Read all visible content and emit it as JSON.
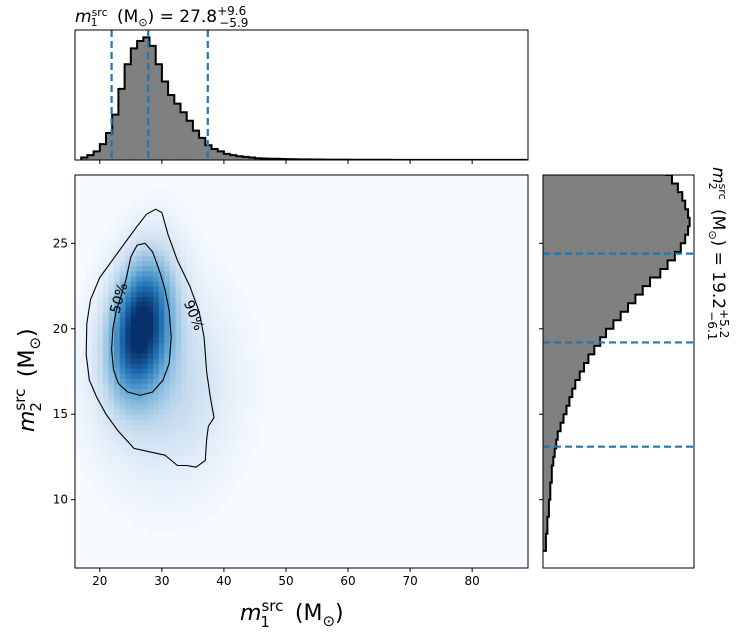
{
  "chart_data": [
    {
      "type": "histogram",
      "panel": "top-marginal",
      "variable": "m1_src",
      "title": {
        "pre": "m",
        "sub": "1",
        "sup": "src",
        "unit": " (M",
        "sun": "⊙",
        "close": ") = ",
        "median": "27.8",
        "plus": "+9.6",
        "minus": "−5.9"
      },
      "xlim": [
        16,
        89
      ],
      "bin_edges_start": 17,
      "bin_width": 1,
      "counts": [
        0.02,
        0.04,
        0.07,
        0.13,
        0.22,
        0.37,
        0.58,
        0.78,
        0.91,
        0.97,
        1.0,
        0.93,
        0.78,
        0.64,
        0.53,
        0.46,
        0.39,
        0.32,
        0.24,
        0.18,
        0.12,
        0.09,
        0.07,
        0.05,
        0.04,
        0.03,
        0.025,
        0.02,
        0.015,
        0.012,
        0.01,
        0.01,
        0.008,
        0.007,
        0.006,
        0.005,
        0.005,
        0.004,
        0.004,
        0.003,
        0.003,
        0.003,
        0.003,
        0.002,
        0.002,
        0.002,
        0.002,
        0.002,
        0.002,
        0.002,
        0.001,
        0.001,
        0.001,
        0.001,
        0.001,
        0.001,
        0.001,
        0.001,
        0.001,
        0.001,
        0.001,
        0.001,
        0.001,
        0.001,
        0.001,
        0.001,
        0.001,
        0.001,
        0.001,
        0.001,
        0.001,
        0.001
      ],
      "quantile_lines": [
        21.9,
        27.8,
        37.4
      ]
    },
    {
      "type": "heatmap",
      "panel": "joint",
      "xlabel": {
        "pre": "m",
        "sub": "1",
        "sup": "src",
        "unit": " (M",
        "sun": "⊙",
        "close": ")"
      },
      "ylabel": {
        "pre": "m",
        "sub": "2",
        "sup": "src",
        "unit": " (M",
        "sun": "⊙",
        "close": ")"
      },
      "xlim": [
        16,
        89
      ],
      "ylim": [
        6,
        29
      ],
      "xticks": [
        20,
        30,
        40,
        50,
        60,
        70,
        80
      ],
      "yticks": [
        10,
        15,
        20,
        25
      ],
      "colormap": [
        "#f7fbff",
        "#c6dbef",
        "#6baed6",
        "#2171b5",
        "#08306b"
      ],
      "contours": [
        {
          "label": "50%",
          "label_at": [
            23.0,
            21.8
          ],
          "label_rotation": -74,
          "points": [
            [
              23.0,
              16.8
            ],
            [
              24.5,
              16.3
            ],
            [
              26.5,
              16.1
            ],
            [
              28.5,
              16.3
            ],
            [
              30.2,
              17.0
            ],
            [
              31.2,
              18.0
            ],
            [
              31.5,
              19.5
            ],
            [
              31.2,
              21.0
            ],
            [
              30.5,
              22.3
            ],
            [
              29.6,
              23.4
            ],
            [
              28.5,
              24.5
            ],
            [
              27.3,
              25.0
            ],
            [
              26.0,
              24.9
            ],
            [
              25.0,
              24.2
            ],
            [
              24.3,
              23.0
            ],
            [
              23.5,
              22.0
            ],
            [
              22.6,
              21.0
            ],
            [
              22.1,
              20.0
            ],
            [
              21.9,
              18.8
            ],
            [
              22.2,
              17.6
            ]
          ]
        },
        {
          "label": "90%",
          "label_at": [
            35.2,
            20.8
          ],
          "label_rotation": 68,
          "points": [
            [
              17.8,
              18.5
            ],
            [
              18.3,
              17.0
            ],
            [
              19.5,
              16.0
            ],
            [
              21.0,
              15.0
            ],
            [
              23.0,
              14.0
            ],
            [
              25.5,
              13.0
            ],
            [
              28.0,
              12.8
            ],
            [
              30.5,
              12.6
            ],
            [
              32.5,
              12.0
            ],
            [
              34.0,
              12.0
            ],
            [
              35.5,
              11.9
            ],
            [
              37.0,
              12.3
            ],
            [
              37.2,
              13.5
            ],
            [
              37.5,
              14.3
            ],
            [
              38.4,
              14.8
            ],
            [
              37.8,
              16.0
            ],
            [
              37.2,
              17.5
            ],
            [
              36.8,
              19.5
            ],
            [
              36.0,
              21.0
            ],
            [
              34.5,
              22.5
            ],
            [
              32.5,
              24.0
            ],
            [
              31.0,
              25.5
            ],
            [
              30.0,
              26.8
            ],
            [
              29.0,
              27.0
            ],
            [
              27.5,
              26.7
            ],
            [
              26.0,
              26.0
            ],
            [
              24.0,
              25.0
            ],
            [
              22.0,
              24.0
            ],
            [
              20.0,
              23.0
            ],
            [
              18.5,
              21.7
            ],
            [
              17.9,
              20.3
            ]
          ]
        }
      ]
    },
    {
      "type": "histogram",
      "panel": "right-marginal",
      "orientation": "horizontal",
      "variable": "m2_src",
      "title": {
        "pre": "m",
        "sub": "2",
        "sup": "src",
        "unit": " (M",
        "sun": "⊙",
        "close": ") = ",
        "median": "19.2",
        "plus": "+5.2",
        "minus": "−6.1"
      },
      "ylim": [
        6,
        29
      ],
      "bin_edges_start": 7,
      "bin_width": 0.5,
      "counts": [
        0.02,
        0.02,
        0.03,
        0.03,
        0.04,
        0.04,
        0.05,
        0.05,
        0.06,
        0.06,
        0.07,
        0.08,
        0.09,
        0.1,
        0.12,
        0.14,
        0.16,
        0.18,
        0.2,
        0.22,
        0.25,
        0.28,
        0.31,
        0.35,
        0.39,
        0.43,
        0.48,
        0.53,
        0.58,
        0.63,
        0.68,
        0.73,
        0.8,
        0.85,
        0.9,
        0.94,
        0.97,
        0.99,
        1.0,
        0.99,
        0.97,
        0.95,
        0.92,
        0.88,
        0.84,
        0.78,
        0.72,
        0.66,
        0.6,
        0.54,
        0.48,
        0.42,
        0.37,
        0.31,
        0.26,
        0.22,
        0.18,
        0.14,
        0.11,
        0.09,
        0.07,
        0.06,
        0.05,
        0.04,
        0.03,
        0.03,
        0.02,
        0.02,
        0.01,
        0.01,
        0.01,
        0.01,
        0.01,
        0.005,
        0.005,
        0.005,
        0.003,
        0.003,
        0.002,
        0.002,
        0.001,
        0.001,
        0.001,
        0.001
      ],
      "quantile_lines": [
        13.1,
        19.2,
        24.4
      ]
    }
  ]
}
